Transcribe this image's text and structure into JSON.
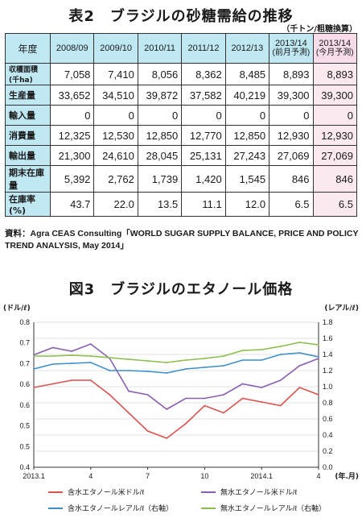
{
  "supply_table": {
    "title": "表2　ブラジルの砂糖需給の推移",
    "unit": "（千トン/粗糖換算）",
    "header_corner": "年度",
    "columns": [
      {
        "year": "2008/09",
        "sub": ""
      },
      {
        "year": "2009/10",
        "sub": ""
      },
      {
        "year": "2010/11",
        "sub": ""
      },
      {
        "year": "2011/12",
        "sub": ""
      },
      {
        "year": "2012/13",
        "sub": ""
      },
      {
        "year": "2013/14",
        "sub": "(前月予測)"
      },
      {
        "year": "2013/14",
        "sub": "(今月予測)"
      }
    ],
    "rows": [
      {
        "label": "収穫面積 (千ha)",
        "values": [
          "7,058",
          "7,410",
          "8,056",
          "8,362",
          "8,485",
          "8,893",
          "8,893"
        ]
      },
      {
        "label": "生産量",
        "values": [
          "33,652",
          "34,510",
          "39,872",
          "37,582",
          "40,219",
          "39,300",
          "39,300"
        ]
      },
      {
        "label": "輸入量",
        "values": [
          "0",
          "0",
          "0",
          "0",
          "0",
          "0",
          "0"
        ]
      },
      {
        "label": "消費量",
        "values": [
          "12,325",
          "12,530",
          "12,850",
          "12,770",
          "12,850",
          "12,930",
          "12,930"
        ]
      },
      {
        "label": "輸出量",
        "values": [
          "21,300",
          "24,610",
          "28,045",
          "25,131",
          "27,243",
          "27,069",
          "27,069"
        ]
      },
      {
        "label": "期末在庫量",
        "values": [
          "5,392",
          "2,762",
          "1,739",
          "1,420",
          "1,545",
          "846",
          "846"
        ]
      },
      {
        "label": "在庫率 (%)",
        "values": [
          "43.7",
          "22.0",
          "13.5",
          "11.1",
          "12.0",
          "6.5",
          "6.5"
        ]
      }
    ],
    "source": "資料：Agra CEAS Consulting「WORLD SUGAR SUPPLY BALANCE, PRICE AND POLICY TREND ANALYSIS, May 2014」",
    "colors": {
      "header_bg": "#bfe8f3",
      "last_col_bg": "#fbe9f0"
    }
  },
  "chart_data": {
    "type": "line",
    "title": "図3　ブラジルのエタノール価格",
    "left_axis_label": "(ドル/ℓ)",
    "right_axis_label": "(レアル/ℓ)",
    "x_unit_label": "(年.月)",
    "x": [
      "2013.1",
      "2013.2",
      "2013.3",
      "2013.4",
      "2013.5",
      "2013.6",
      "2013.7",
      "2013.8",
      "2013.9",
      "2013.10",
      "2013.11",
      "2013.12",
      "2014.1",
      "2014.2",
      "2014.3",
      "2014.4"
    ],
    "x_tick_labels": [
      {
        "index": 0,
        "label": "2013.1"
      },
      {
        "index": 3,
        "label": "4"
      },
      {
        "index": 6,
        "label": "7"
      },
      {
        "index": 9,
        "label": "10"
      },
      {
        "index": 12,
        "label": "2014.1"
      },
      {
        "index": 15,
        "label": "4"
      }
    ],
    "ylim_left": [
      0.4,
      0.8
    ],
    "yticks_left": [
      "0.4",
      "0.5",
      "0.5",
      "0.6",
      "0.6",
      "0.7",
      "0.7",
      "0.8"
    ],
    "ylim_right": [
      0.0,
      1.8
    ],
    "yticks_right": [
      "0.0",
      "0.2",
      "0.4",
      "0.6",
      "0.8",
      "1.0",
      "1.2",
      "1.4",
      "1.6",
      "1.8"
    ],
    "grid": true,
    "series": [
      {
        "name": "含水エタノール米ドル/ℓ",
        "axis": "left",
        "color": "#d9534f",
        "values": [
          0.62,
          0.63,
          0.64,
          0.64,
          0.6,
          0.55,
          0.5,
          0.48,
          0.52,
          0.57,
          0.55,
          0.59,
          0.58,
          0.57,
          0.62,
          0.6
        ]
      },
      {
        "name": "無水エタノール米ドル/ℓ",
        "axis": "left",
        "color": "#8a5fb0",
        "values": [
          0.71,
          0.73,
          0.72,
          0.74,
          0.7,
          0.61,
          0.6,
          0.56,
          0.59,
          0.59,
          0.6,
          0.63,
          0.62,
          0.64,
          0.68,
          0.7
        ]
      },
      {
        "name": "含水エタノールレアル/ℓ（右軸）",
        "axis": "right",
        "color": "#3a8fc8",
        "values": [
          1.22,
          1.28,
          1.29,
          1.3,
          1.2,
          1.2,
          1.19,
          1.17,
          1.22,
          1.24,
          1.26,
          1.33,
          1.33,
          1.4,
          1.42,
          1.37
        ]
      },
      {
        "name": "無水エタノールレアル/ℓ（右軸）",
        "axis": "right",
        "color": "#8bbd4a",
        "values": [
          1.38,
          1.38,
          1.39,
          1.38,
          1.36,
          1.34,
          1.32,
          1.3,
          1.33,
          1.35,
          1.38,
          1.45,
          1.46,
          1.5,
          1.55,
          1.52
        ]
      }
    ],
    "legend_position": "bottom"
  }
}
